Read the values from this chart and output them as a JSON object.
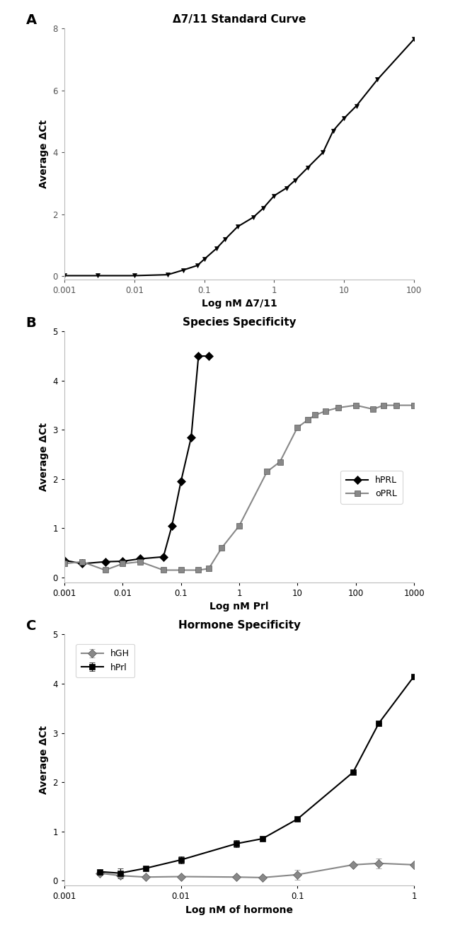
{
  "panel_A": {
    "title": "Δ7/11 Standard Curve",
    "xlabel": "Log nM Δ7/11",
    "ylabel": "Average ΔCt",
    "xlim": [
      0.001,
      100
    ],
    "ylim": [
      -0.1,
      8
    ],
    "yticks": [
      0,
      2,
      4,
      6,
      8
    ],
    "x": [
      0.001,
      0.003,
      0.01,
      0.03,
      0.05,
      0.08,
      0.1,
      0.15,
      0.2,
      0.3,
      0.5,
      0.7,
      1.0,
      1.5,
      2.0,
      3.0,
      5.0,
      7.0,
      10,
      15,
      30,
      100
    ],
    "y": [
      0.02,
      0.02,
      0.02,
      0.05,
      0.2,
      0.35,
      0.55,
      0.9,
      1.2,
      1.6,
      1.9,
      2.2,
      2.6,
      2.85,
      3.1,
      3.5,
      4.0,
      4.7,
      5.1,
      5.5,
      6.35,
      7.65
    ],
    "color": "#000000",
    "marker": "v",
    "markersize": 5
  },
  "panel_B": {
    "title": "Species Specificity",
    "xlabel": "Log nM Prl",
    "ylabel": "Average ΔCt",
    "xlim": [
      0.001,
      1000
    ],
    "ylim": [
      -0.1,
      5
    ],
    "yticks": [
      0,
      1,
      2,
      3,
      4,
      5
    ],
    "hPRL_x": [
      0.001,
      0.002,
      0.005,
      0.01,
      0.02,
      0.05,
      0.07,
      0.1,
      0.15,
      0.2,
      0.3
    ],
    "hPRL_y": [
      0.35,
      0.28,
      0.32,
      0.33,
      0.38,
      0.42,
      1.05,
      1.95,
      2.85,
      4.5,
      4.5
    ],
    "oPRL_x": [
      0.001,
      0.002,
      0.005,
      0.01,
      0.02,
      0.05,
      0.1,
      0.2,
      0.3,
      0.5,
      1.0,
      3.0,
      5.0,
      10,
      15,
      20,
      30,
      50,
      100,
      200,
      300,
      500,
      1000
    ],
    "oPRL_y": [
      0.28,
      0.32,
      0.15,
      0.28,
      0.32,
      0.15,
      0.15,
      0.15,
      0.18,
      0.6,
      1.05,
      2.15,
      2.35,
      3.05,
      3.2,
      3.3,
      3.38,
      3.45,
      3.5,
      3.42,
      3.5,
      3.5,
      3.5
    ],
    "hPRL_color": "#000000",
    "oPRL_color": "#888888",
    "hPRL_marker": "D",
    "oPRL_marker": "s",
    "markersize": 6
  },
  "panel_C": {
    "title": "Hormone Specificity",
    "xlabel": "Log nM of hormone",
    "ylabel": "Average ΔCt",
    "xlim": [
      0.001,
      1
    ],
    "ylim": [
      -0.1,
      5
    ],
    "yticks": [
      0,
      1,
      2,
      3,
      4,
      5
    ],
    "hGH_x": [
      0.002,
      0.003,
      0.005,
      0.01,
      0.03,
      0.05,
      0.1,
      0.3,
      0.5,
      1.0
    ],
    "hGH_y": [
      0.15,
      0.1,
      0.07,
      0.08,
      0.07,
      0.06,
      0.12,
      0.32,
      0.35,
      0.32
    ],
    "hGH_yerr": [
      0.0,
      0.0,
      0.0,
      0.0,
      0.0,
      0.0,
      0.1,
      0.0,
      0.1,
      0.0
    ],
    "hPrl_x": [
      0.002,
      0.003,
      0.005,
      0.01,
      0.03,
      0.05,
      0.1,
      0.3,
      0.5,
      1.0
    ],
    "hPrl_y": [
      0.18,
      0.15,
      0.25,
      0.42,
      0.75,
      0.85,
      1.25,
      2.2,
      3.2,
      4.15
    ],
    "hPrl_yerr": [
      0.0,
      0.1,
      0.0,
      0.07,
      0.07,
      0.0,
      0.0,
      0.0,
      0.0,
      0.0
    ],
    "hGH_color": "#888888",
    "hPrl_color": "#000000",
    "hGH_marker": "D",
    "hPrl_marker": "s",
    "markersize": 6
  }
}
